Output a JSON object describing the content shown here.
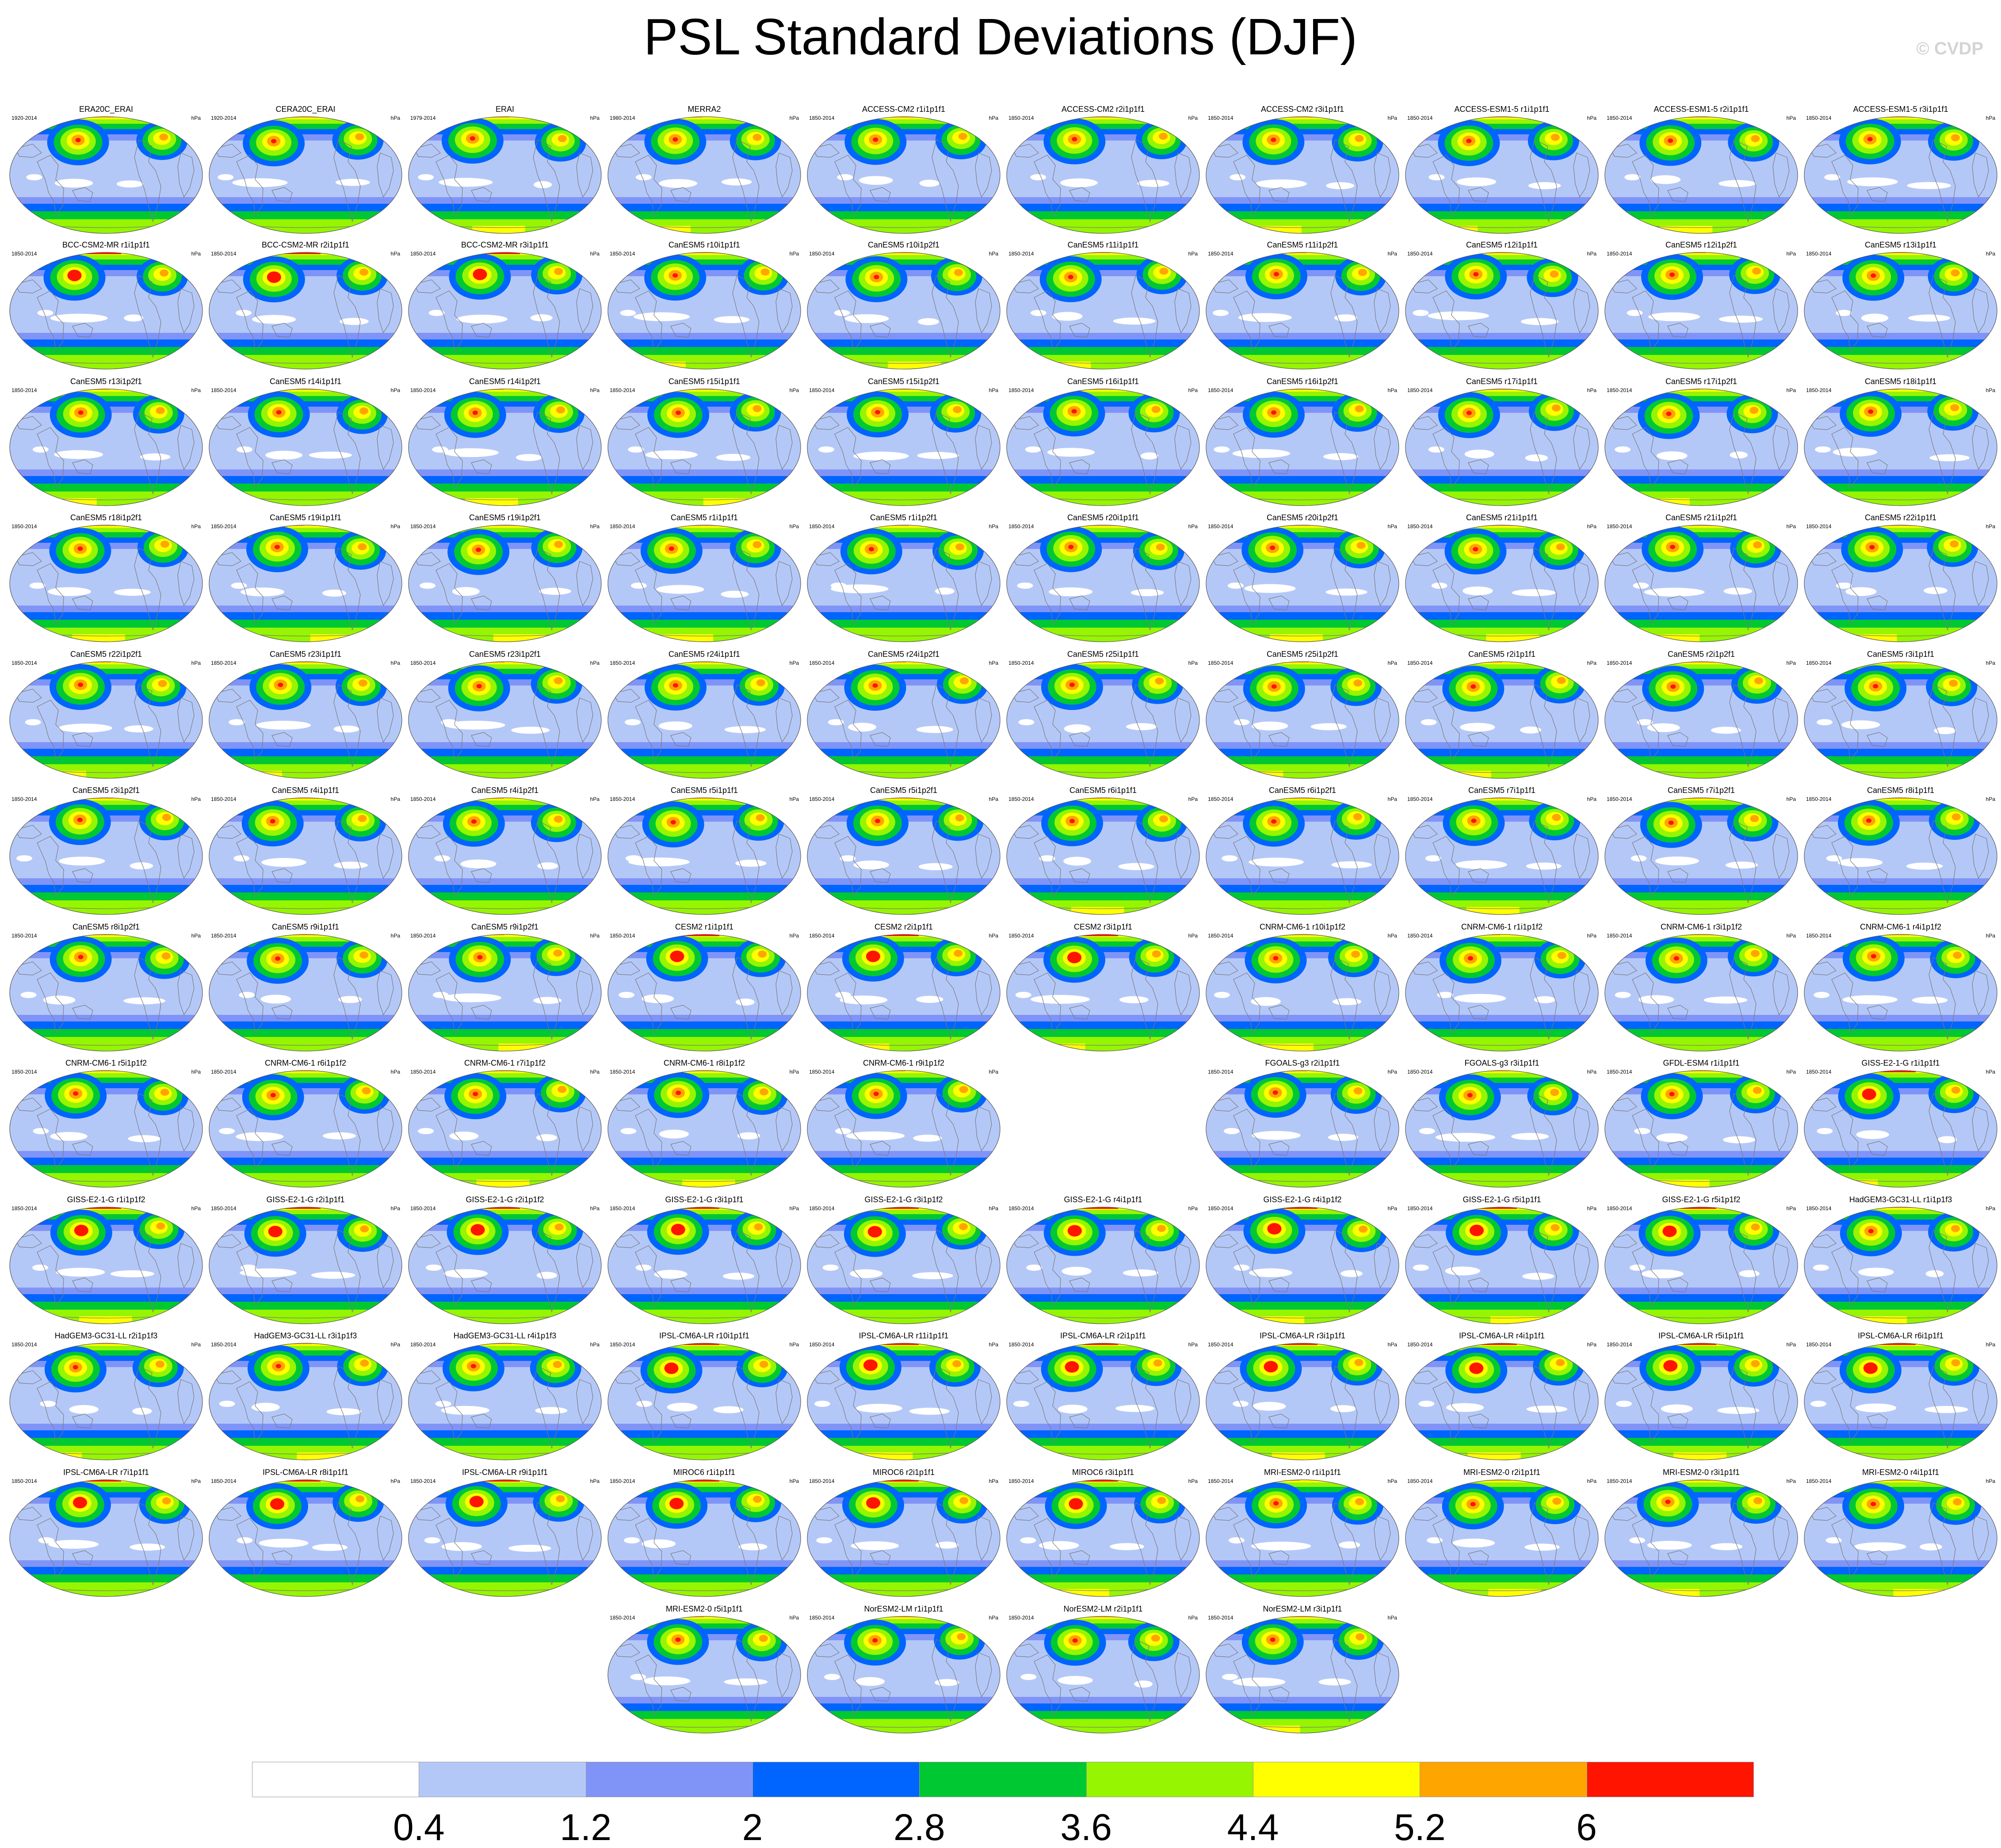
{
  "title": "PSL Standard Deviations (DJF)",
  "watermark": "© CVDP",
  "colors": {
    "levels": [
      "#ffffff",
      "#b4c8f8",
      "#8094f8",
      "#0064ff",
      "#00c832",
      "#96f500",
      "#ffff00",
      "#ffa500",
      "#ff1400"
    ],
    "coast": "#7a7a7a"
  },
  "chart_data": {
    "type": "heatmap",
    "title": "PSL Standard Deviations (DJF)",
    "variable": "PSL",
    "season": "DJF",
    "units": "hPa",
    "colorbar": {
      "ticks": [
        0.4,
        1.2,
        2,
        2.8,
        3.6,
        4.4,
        5.2,
        6
      ],
      "tick_labels": [
        "0.4",
        "1.2",
        "2",
        "2.8",
        "3.6",
        "4.4",
        "5.2",
        "6"
      ]
    },
    "panels": [
      {
        "title": "ERA20C_ERAI",
        "years": "1920-2014",
        "units": "hPa"
      },
      {
        "title": "CERA20C_ERAI",
        "years": "1920-2014",
        "units": "hPa"
      },
      {
        "title": "ERAI",
        "years": "1979-2014",
        "units": "hPa"
      },
      {
        "title": "MERRA2",
        "years": "1980-2014",
        "units": "hPa"
      },
      {
        "title": "ACCESS-CM2 r1i1p1f1",
        "years": "1850-2014",
        "units": "hPa"
      },
      {
        "title": "ACCESS-CM2 r2i1p1f1",
        "years": "1850-2014",
        "units": "hPa"
      },
      {
        "title": "ACCESS-CM2 r3i1p1f1",
        "years": "1850-2014",
        "units": "hPa"
      },
      {
        "title": "ACCESS-ESM1-5 r1i1p1f1",
        "years": "1850-2014",
        "units": "hPa"
      },
      {
        "title": "ACCESS-ESM1-5 r2i1p1f1",
        "years": "1850-2014",
        "units": "hPa"
      },
      {
        "title": "ACCESS-ESM1-5 r3i1p1f1",
        "years": "1850-2014",
        "units": "hPa"
      },
      {
        "title": "BCC-CSM2-MR r1i1p1f1",
        "years": "1850-2014",
        "units": "hPa"
      },
      {
        "title": "BCC-CSM2-MR r2i1p1f1",
        "years": "1850-2014",
        "units": "hPa"
      },
      {
        "title": "BCC-CSM2-MR r3i1p1f1",
        "years": "1850-2014",
        "units": "hPa"
      },
      {
        "title": "CanESM5 r10i1p1f1",
        "years": "1850-2014",
        "units": "hPa"
      },
      {
        "title": "CanESM5 r10i1p2f1",
        "years": "1850-2014",
        "units": "hPa"
      },
      {
        "title": "CanESM5 r11i1p1f1",
        "years": "1850-2014",
        "units": "hPa"
      },
      {
        "title": "CanESM5 r11i1p2f1",
        "years": "1850-2014",
        "units": "hPa"
      },
      {
        "title": "CanESM5 r12i1p1f1",
        "years": "1850-2014",
        "units": "hPa"
      },
      {
        "title": "CanESM5 r12i1p2f1",
        "years": "1850-2014",
        "units": "hPa"
      },
      {
        "title": "CanESM5 r13i1p1f1",
        "years": "1850-2014",
        "units": "hPa"
      },
      {
        "title": "CanESM5 r13i1p2f1",
        "years": "1850-2014",
        "units": "hPa"
      },
      {
        "title": "CanESM5 r14i1p1f1",
        "years": "1850-2014",
        "units": "hPa"
      },
      {
        "title": "CanESM5 r14i1p2f1",
        "years": "1850-2014",
        "units": "hPa"
      },
      {
        "title": "CanESM5 r15i1p1f1",
        "years": "1850-2014",
        "units": "hPa"
      },
      {
        "title": "CanESM5 r15i1p2f1",
        "years": "1850-2014",
        "units": "hPa"
      },
      {
        "title": "CanESM5 r16i1p1f1",
        "years": "1850-2014",
        "units": "hPa"
      },
      {
        "title": "CanESM5 r16i1p2f1",
        "years": "1850-2014",
        "units": "hPa"
      },
      {
        "title": "CanESM5 r17i1p1f1",
        "years": "1850-2014",
        "units": "hPa"
      },
      {
        "title": "CanESM5 r17i1p2f1",
        "years": "1850-2014",
        "units": "hPa"
      },
      {
        "title": "CanESM5 r18i1p1f1",
        "years": "1850-2014",
        "units": "hPa"
      },
      {
        "title": "CanESM5 r18i1p2f1",
        "years": "1850-2014",
        "units": "hPa"
      },
      {
        "title": "CanESM5 r19i1p1f1",
        "years": "1850-2014",
        "units": "hPa"
      },
      {
        "title": "CanESM5 r19i1p2f1",
        "years": "1850-2014",
        "units": "hPa"
      },
      {
        "title": "CanESM5 r1i1p1f1",
        "years": "1850-2014",
        "units": "hPa"
      },
      {
        "title": "CanESM5 r1i1p2f1",
        "years": "1850-2014",
        "units": "hPa"
      },
      {
        "title": "CanESM5 r20i1p1f1",
        "years": "1850-2014",
        "units": "hPa"
      },
      {
        "title": "CanESM5 r20i1p2f1",
        "years": "1850-2014",
        "units": "hPa"
      },
      {
        "title": "CanESM5 r21i1p1f1",
        "years": "1850-2014",
        "units": "hPa"
      },
      {
        "title": "CanESM5 r21i1p2f1",
        "years": "1850-2014",
        "units": "hPa"
      },
      {
        "title": "CanESM5 r22i1p1f1",
        "years": "1850-2014",
        "units": "hPa"
      },
      {
        "title": "CanESM5 r22i1p2f1",
        "years": "1850-2014",
        "units": "hPa"
      },
      {
        "title": "CanESM5 r23i1p1f1",
        "years": "1850-2014",
        "units": "hPa"
      },
      {
        "title": "CanESM5 r23i1p2f1",
        "years": "1850-2014",
        "units": "hPa"
      },
      {
        "title": "CanESM5 r24i1p1f1",
        "years": "1850-2014",
        "units": "hPa"
      },
      {
        "title": "CanESM5 r24i1p2f1",
        "years": "1850-2014",
        "units": "hPa"
      },
      {
        "title": "CanESM5 r25i1p1f1",
        "years": "1850-2014",
        "units": "hPa"
      },
      {
        "title": "CanESM5 r25i1p2f1",
        "years": "1850-2014",
        "units": "hPa"
      },
      {
        "title": "CanESM5 r2i1p1f1",
        "years": "1850-2014",
        "units": "hPa"
      },
      {
        "title": "CanESM5 r2i1p2f1",
        "years": "1850-2014",
        "units": "hPa"
      },
      {
        "title": "CanESM5 r3i1p1f1",
        "years": "1850-2014",
        "units": "hPa"
      },
      {
        "title": "CanESM5 r3i1p2f1",
        "years": "1850-2014",
        "units": "hPa"
      },
      {
        "title": "CanESM5 r4i1p1f1",
        "years": "1850-2014",
        "units": "hPa"
      },
      {
        "title": "CanESM5 r4i1p2f1",
        "years": "1850-2014",
        "units": "hPa"
      },
      {
        "title": "CanESM5 r5i1p1f1",
        "years": "1850-2014",
        "units": "hPa"
      },
      {
        "title": "CanESM5 r5i1p2f1",
        "years": "1850-2014",
        "units": "hPa"
      },
      {
        "title": "CanESM5 r6i1p1f1",
        "years": "1850-2014",
        "units": "hPa"
      },
      {
        "title": "CanESM5 r6i1p2f1",
        "years": "1850-2014",
        "units": "hPa"
      },
      {
        "title": "CanESM5 r7i1p1f1",
        "years": "1850-2014",
        "units": "hPa"
      },
      {
        "title": "CanESM5 r7i1p2f1",
        "years": "1850-2014",
        "units": "hPa"
      },
      {
        "title": "CanESM5 r8i1p1f1",
        "years": "1850-2014",
        "units": "hPa"
      },
      {
        "title": "CanESM5 r8i1p2f1",
        "years": "1850-2014",
        "units": "hPa"
      },
      {
        "title": "CanESM5 r9i1p1f1",
        "years": "1850-2014",
        "units": "hPa"
      },
      {
        "title": "CanESM5 r9i1p2f1",
        "years": "1850-2014",
        "units": "hPa"
      },
      {
        "title": "CESM2 r1i1p1f1",
        "years": "1850-2014",
        "units": "hPa"
      },
      {
        "title": "CESM2 r2i1p1f1",
        "years": "1850-2014",
        "units": "hPa"
      },
      {
        "title": "CESM2 r3i1p1f1",
        "years": "1850-2014",
        "units": "hPa"
      },
      {
        "title": "CNRM-CM6-1 r10i1p1f2",
        "years": "1850-2014",
        "units": "hPa"
      },
      {
        "title": "CNRM-CM6-1 r1i1p1f2",
        "years": "1850-2014",
        "units": "hPa"
      },
      {
        "title": "CNRM-CM6-1 r3i1p1f2",
        "years": "1850-2014",
        "units": "hPa"
      },
      {
        "title": "CNRM-CM6-1 r4i1p1f2",
        "years": "1850-2014",
        "units": "hPa"
      },
      {
        "title": "CNRM-CM6-1 r5i1p1f2",
        "years": "1850-2014",
        "units": "hPa"
      },
      {
        "title": "CNRM-CM6-1 r6i1p1f2",
        "years": "1850-2014",
        "units": "hPa"
      },
      {
        "title": "CNRM-CM6-1 r7i1p1f2",
        "years": "1850-2014",
        "units": "hPa"
      },
      {
        "title": "CNRM-CM6-1 r8i1p1f2",
        "years": "1850-2014",
        "units": "hPa"
      },
      {
        "title": "CNRM-CM6-1 r9i1p1f2",
        "years": "1850-2014",
        "units": "hPa"
      },
      {
        "title": "FGOALS-g3 r2i1p1f1",
        "years": "1850-2014",
        "units": "hPa"
      },
      {
        "title": "FGOALS-g3 r3i1p1f1",
        "years": "1850-2014",
        "units": "hPa"
      },
      {
        "title": "GFDL-ESM4 r1i1p1f1",
        "years": "1850-2014",
        "units": "hPa"
      },
      {
        "title": "GISS-E2-1-G r1i1p1f1",
        "years": "1850-2014",
        "units": "hPa"
      },
      {
        "title": "GISS-E2-1-G r1i1p1f2",
        "years": "1850-2014",
        "units": "hPa"
      },
      {
        "title": "GISS-E2-1-G r2i1p1f1",
        "years": "1850-2014",
        "units": "hPa"
      },
      {
        "title": "GISS-E2-1-G r2i1p1f2",
        "years": "1850-2014",
        "units": "hPa"
      },
      {
        "title": "GISS-E2-1-G r3i1p1f1",
        "years": "1850-2014",
        "units": "hPa"
      },
      {
        "title": "GISS-E2-1-G r3i1p1f2",
        "years": "1850-2014",
        "units": "hPa"
      },
      {
        "title": "GISS-E2-1-G r4i1p1f1",
        "years": "1850-2014",
        "units": "hPa"
      },
      {
        "title": "GISS-E2-1-G r4i1p1f2",
        "years": "1850-2014",
        "units": "hPa"
      },
      {
        "title": "GISS-E2-1-G r5i1p1f1",
        "years": "1850-2014",
        "units": "hPa"
      },
      {
        "title": "GISS-E2-1-G r5i1p1f2",
        "years": "1850-2014",
        "units": "hPa"
      },
      {
        "title": "HadGEM3-GC31-LL r1i1p1f3",
        "years": "1850-2014",
        "units": "hPa"
      },
      {
        "title": "HadGEM3-GC31-LL r2i1p1f3",
        "years": "1850-2014",
        "units": "hPa"
      },
      {
        "title": "HadGEM3-GC31-LL r3i1p1f3",
        "years": "1850-2014",
        "units": "hPa"
      },
      {
        "title": "HadGEM3-GC31-LL r4i1p1f3",
        "years": "1850-2014",
        "units": "hPa"
      },
      {
        "title": "IPSL-CM6A-LR r10i1p1f1",
        "years": "1850-2014",
        "units": "hPa"
      },
      {
        "title": "IPSL-CM6A-LR r11i1p1f1",
        "years": "1850-2014",
        "units": "hPa"
      },
      {
        "title": "IPSL-CM6A-LR r2i1p1f1",
        "years": "1850-2014",
        "units": "hPa"
      },
      {
        "title": "IPSL-CM6A-LR r3i1p1f1",
        "years": "1850-2014",
        "units": "hPa"
      },
      {
        "title": "IPSL-CM6A-LR r4i1p1f1",
        "years": "1850-2014",
        "units": "hPa"
      },
      {
        "title": "IPSL-CM6A-LR r5i1p1f1",
        "years": "1850-2014",
        "units": "hPa"
      },
      {
        "title": "IPSL-CM6A-LR r6i1p1f1",
        "years": "1850-2014",
        "units": "hPa"
      },
      {
        "title": "IPSL-CM6A-LR r7i1p1f1",
        "years": "1850-2014",
        "units": "hPa"
      },
      {
        "title": "IPSL-CM6A-LR r8i1p1f1",
        "years": "1850-2014",
        "units": "hPa"
      },
      {
        "title": "IPSL-CM6A-LR r9i1p1f1",
        "years": "1850-2014",
        "units": "hPa"
      },
      {
        "title": "MIROC6 r1i1p1f1",
        "years": "1850-2014",
        "units": "hPa"
      },
      {
        "title": "MIROC6 r2i1p1f1",
        "years": "1850-2014",
        "units": "hPa"
      },
      {
        "title": "MIROC6 r3i1p1f1",
        "years": "1850-2014",
        "units": "hPa"
      },
      {
        "title": "MRI-ESM2-0 r1i1p1f1",
        "years": "1850-2014",
        "units": "hPa"
      },
      {
        "title": "MRI-ESM2-0 r2i1p1f1",
        "years": "1850-2014",
        "units": "hPa"
      },
      {
        "title": "MRI-ESM2-0 r3i1p1f1",
        "years": "1850-2014",
        "units": "hPa"
      },
      {
        "title": "MRI-ESM2-0 r4i1p1f1",
        "years": "1850-2014",
        "units": "hPa"
      },
      {
        "title": "MRI-ESM2-0 r5i1p1f1",
        "years": "1850-2014",
        "units": "hPa"
      },
      {
        "title": "NorESM2-LM r1i1p1f1",
        "years": "1850-2014",
        "units": "hPa"
      },
      {
        "title": "NorESM2-LM r2i1p1f1",
        "years": "1850-2014",
        "units": "hPa"
      },
      {
        "title": "NorESM2-LM r3i1p1f1",
        "years": "1850-2014",
        "units": "hPa"
      }
    ]
  }
}
